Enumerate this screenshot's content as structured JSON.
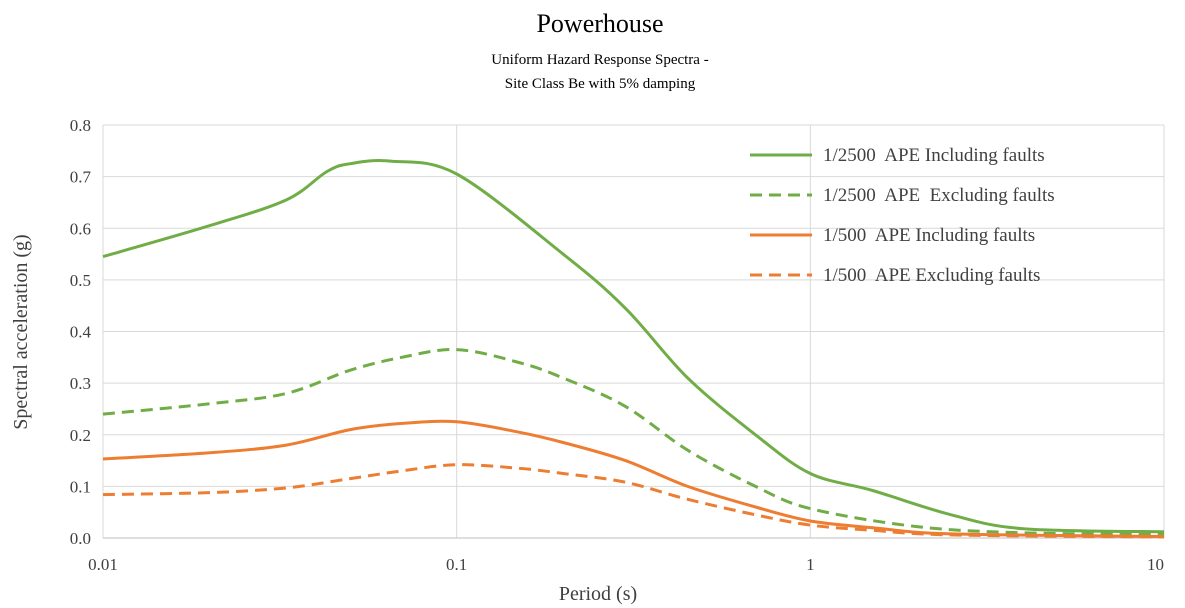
{
  "chart_data": {
    "type": "line",
    "title": "Powerhouse",
    "subtitle_lines": [
      "Uniform Hazard Response Spectra -",
      "Site Class Be with 5% damping"
    ],
    "xlabel": "Period (s)",
    "ylabel": "Spectral acceleration (g)",
    "x_scale": "log",
    "xlim": [
      0.01,
      10
    ],
    "ylim": [
      0,
      0.8
    ],
    "x_ticks": [
      0.01,
      0.1,
      1,
      10
    ],
    "x_tick_labels": [
      "0.01",
      "0.1",
      "1",
      "10"
    ],
    "y_ticks": [
      0,
      0.1,
      0.2,
      0.3,
      0.4,
      0.5,
      0.6,
      0.7,
      0.8
    ],
    "y_tick_labels": [
      "0.0",
      "0.1",
      "0.2",
      "0.3",
      "0.4",
      "0.5",
      "0.6",
      "0.7",
      "0.8"
    ],
    "grid": true,
    "legend_position": "top-right",
    "series": [
      {
        "name": "1/2500  APE Including faults",
        "color": "#70ad47",
        "dash": "solid",
        "x": [
          0.01,
          0.02,
          0.033,
          0.043,
          0.05,
          0.065,
          0.1,
          0.2,
          0.3,
          0.45,
          0.7,
          1.0,
          1.5,
          2.5,
          4.0,
          10.0
        ],
        "y": [
          0.545,
          0.605,
          0.655,
          0.71,
          0.725,
          0.73,
          0.705,
          0.55,
          0.445,
          0.31,
          0.2,
          0.125,
          0.092,
          0.045,
          0.018,
          0.012
        ]
      },
      {
        "name": "1/2500  APE  Excluding faults",
        "color": "#70ad47",
        "dash": "dashed",
        "x": [
          0.01,
          0.02,
          0.033,
          0.05,
          0.07,
          0.1,
          0.15,
          0.2,
          0.3,
          0.45,
          0.7,
          1.0,
          2.0,
          4.0,
          10.0
        ],
        "y": [
          0.24,
          0.26,
          0.28,
          0.325,
          0.35,
          0.365,
          0.34,
          0.31,
          0.255,
          0.17,
          0.1,
          0.057,
          0.022,
          0.01,
          0.007
        ]
      },
      {
        "name": "1/500  APE Including faults",
        "color": "#ed7d31",
        "dash": "solid",
        "x": [
          0.01,
          0.02,
          0.033,
          0.05,
          0.07,
          0.1,
          0.15,
          0.2,
          0.3,
          0.45,
          0.7,
          1.0,
          1.5,
          2.5,
          10.0
        ],
        "y": [
          0.153,
          0.165,
          0.18,
          0.21,
          0.222,
          0.225,
          0.205,
          0.185,
          0.15,
          0.1,
          0.06,
          0.033,
          0.02,
          0.008,
          0.003
        ]
      },
      {
        "name": "1/500  APE Excluding faults",
        "color": "#ed7d31",
        "dash": "dashed",
        "x": [
          0.01,
          0.02,
          0.033,
          0.05,
          0.07,
          0.1,
          0.15,
          0.2,
          0.3,
          0.45,
          0.7,
          1.0,
          1.5,
          2.5,
          10.0
        ],
        "y": [
          0.084,
          0.088,
          0.097,
          0.115,
          0.13,
          0.142,
          0.135,
          0.125,
          0.108,
          0.075,
          0.045,
          0.025,
          0.015,
          0.006,
          0.002
        ]
      }
    ]
  }
}
